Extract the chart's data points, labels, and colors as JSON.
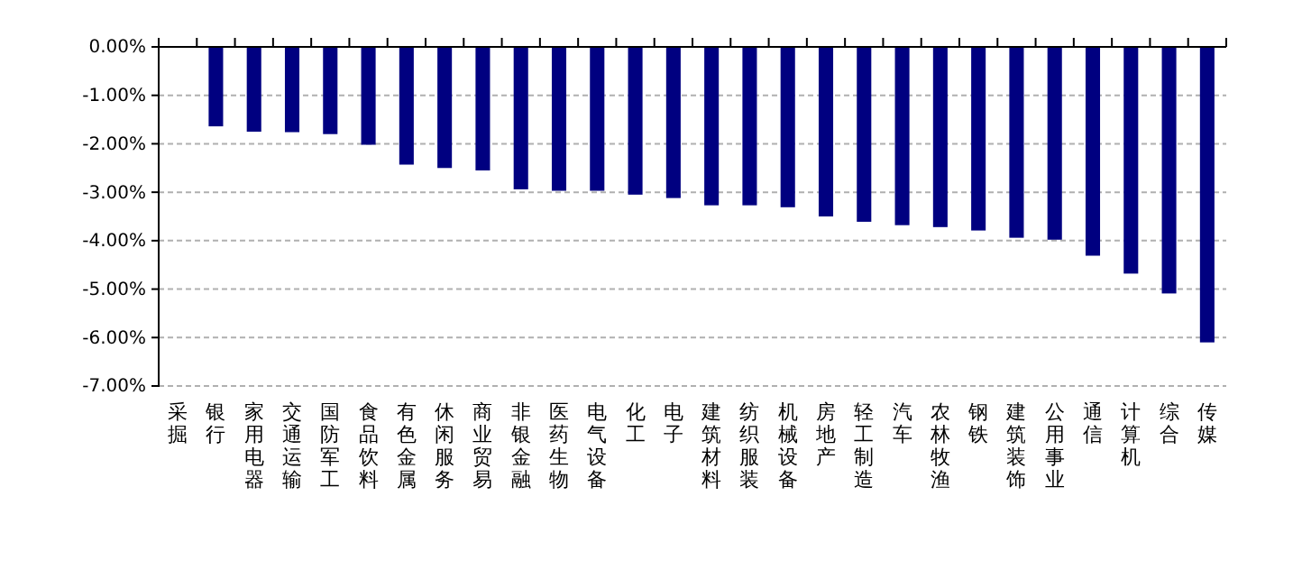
{
  "chart_data": {
    "type": "bar",
    "categories": [
      "采掘",
      "银行",
      "家用电器",
      "交通运输",
      "国防军工",
      "食品饮料",
      "有色金属",
      "休闲服务",
      "商业贸易",
      "非银金融",
      "医药生物",
      "电气设备",
      "化工",
      "电子",
      "建筑材料",
      "纺织服装",
      "机械设备",
      "房地产",
      "轻工制造",
      "汽车",
      "农林牧渔",
      "钢铁",
      "建筑装饰",
      "公用事业",
      "通信",
      "计算机",
      "综合",
      "传媒"
    ],
    "values": [
      0,
      -1.64,
      -1.75,
      -1.76,
      -1.8,
      -2.02,
      -2.43,
      -2.5,
      -2.55,
      -2.94,
      -2.97,
      -2.97,
      -3.05,
      -3.12,
      -3.27,
      -3.27,
      -3.31,
      -3.5,
      -3.61,
      -3.68,
      -3.72,
      -3.79,
      -3.94,
      -3.98,
      -4.31,
      -4.68,
      -5.09,
      -6.1
    ],
    "color": "#000080",
    "ylim": [
      -7,
      0
    ],
    "yticks": [
      {
        "value": 0,
        "label": "0.00%"
      },
      {
        "value": -1,
        "label": "-1.00%"
      },
      {
        "value": -2,
        "label": "-2.00%"
      },
      {
        "value": -3,
        "label": "-3.00%"
      },
      {
        "value": -4,
        "label": "-4.00%"
      },
      {
        "value": -5,
        "label": "-5.00%"
      },
      {
        "value": -6,
        "label": "-6.00%"
      },
      {
        "value": -7,
        "label": "-7.00%"
      }
    ],
    "grid": "y"
  }
}
